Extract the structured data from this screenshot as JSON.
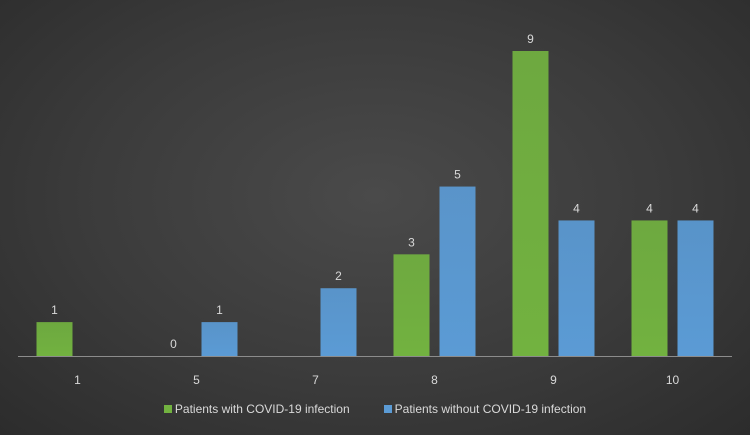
{
  "chart_data": {
    "type": "bar",
    "title": "",
    "xlabel": "",
    "ylabel": "",
    "categories": [
      "1",
      "5",
      "7",
      "8",
      "9",
      "10"
    ],
    "series": [
      {
        "name": "Patients with COVID-19 infection",
        "color": "#72b240",
        "values": [
          1,
          0,
          null,
          3,
          9,
          4
        ],
        "labels": [
          "1",
          "0",
          "",
          "3",
          "9",
          "4"
        ]
      },
      {
        "name": "Patients without COVID-19 infection",
        "color": "#5b9bd5",
        "values": [
          null,
          1,
          2,
          5,
          4,
          4
        ],
        "labels": [
          "",
          "1",
          "2",
          "5",
          "4",
          "4"
        ]
      }
    ],
    "ylim": [
      0,
      9
    ],
    "grid": false,
    "legend_position": "bottom"
  }
}
